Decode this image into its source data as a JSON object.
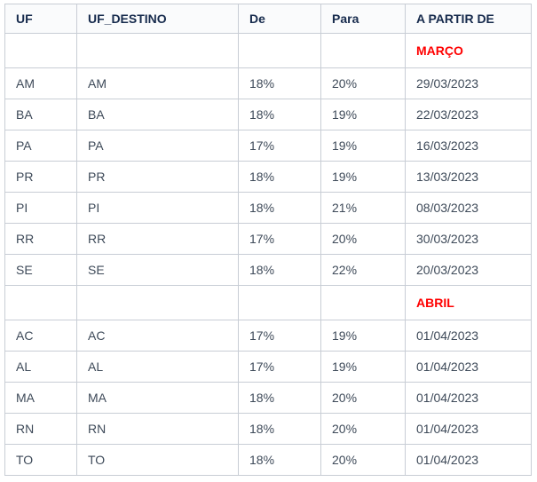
{
  "colors": {
    "header_text": "#172b4d",
    "body_text": "#3e4a59",
    "highlight": "#ff0000",
    "border": "#c8cdd5",
    "header_bg": "#fafbfc",
    "row_bg": "#ffffff"
  },
  "table": {
    "columns": [
      {
        "key": "uf",
        "label": "UF"
      },
      {
        "key": "uf_destino",
        "label": "UF_DESTINO"
      },
      {
        "key": "de",
        "label": "De"
      },
      {
        "key": "para",
        "label": "Para"
      },
      {
        "key": "a_partir_de",
        "label": "A PARTIR DE"
      }
    ],
    "rows": [
      {
        "type": "month",
        "uf": "",
        "uf_destino": "",
        "de": "",
        "para": "",
        "a_partir_de": "MARÇO"
      },
      {
        "type": "data",
        "uf": "AM",
        "uf_destino": "AM",
        "de": "18%",
        "para": "20%",
        "a_partir_de": "29/03/2023"
      },
      {
        "type": "data",
        "uf": "BA",
        "uf_destino": "BA",
        "de": "18%",
        "para": "19%",
        "a_partir_de": "22/03/2023"
      },
      {
        "type": "data",
        "uf": "PA",
        "uf_destino": "PA",
        "de": "17%",
        "para": "19%",
        "a_partir_de": "16/03/2023"
      },
      {
        "type": "data",
        "uf": "PR",
        "uf_destino": "PR",
        "de": "18%",
        "para": "19%",
        "a_partir_de": "13/03/2023"
      },
      {
        "type": "data",
        "uf": "PI",
        "uf_destino": "PI",
        "de": "18%",
        "para": "21%",
        "a_partir_de": "08/03/2023"
      },
      {
        "type": "data",
        "uf": "RR",
        "uf_destino": "RR",
        "de": "17%",
        "para": "20%",
        "a_partir_de": "30/03/2023"
      },
      {
        "type": "data",
        "uf": "SE",
        "uf_destino": "SE",
        "de": "18%",
        "para": "22%",
        "a_partir_de": "20/03/2023"
      },
      {
        "type": "month",
        "uf": "",
        "uf_destino": "",
        "de": "",
        "para": "",
        "a_partir_de": "ABRIL"
      },
      {
        "type": "data",
        "uf": "AC",
        "uf_destino": "AC",
        "de": "17%",
        "para": "19%",
        "a_partir_de": "01/04/2023"
      },
      {
        "type": "data",
        "uf": "AL",
        "uf_destino": "AL",
        "de": "17%",
        "para": "19%",
        "a_partir_de": "01/04/2023"
      },
      {
        "type": "data",
        "uf": "MA",
        "uf_destino": "MA",
        "de": "18%",
        "para": "20%",
        "a_partir_de": "01/04/2023"
      },
      {
        "type": "data",
        "uf": "RN",
        "uf_destino": "RN",
        "de": "18%",
        "para": "20%",
        "a_partir_de": "01/04/2023"
      },
      {
        "type": "data",
        "uf": "TO",
        "uf_destino": "TO",
        "de": "18%",
        "para": "20%",
        "a_partir_de": "01/04/2023"
      }
    ]
  }
}
